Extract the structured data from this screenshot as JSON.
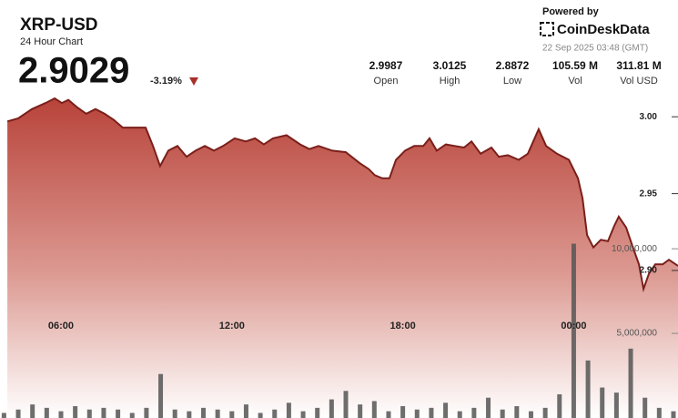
{
  "header": {
    "symbol": "XRP-USD",
    "subtitle": "24 Hour Chart",
    "price": "2.9029",
    "change": "-3.19%",
    "powered_by": "Powered by",
    "brand": "CoinDeskData",
    "timestamp": "22 Sep 2025 03:48 (GMT)",
    "stats": [
      {
        "value": "2.9987",
        "label": "Open"
      },
      {
        "value": "3.0125",
        "label": "High"
      },
      {
        "value": "2.8872",
        "label": "Low"
      },
      {
        "value": "105.59 M",
        "label": "Vol"
      },
      {
        "value": "311.81 M",
        "label": "Vol USD"
      }
    ]
  },
  "chart_data": [
    {
      "type": "area",
      "color": "#7a1f1a",
      "x": [
        4.12,
        4.5,
        4.98,
        5.46,
        5.78,
        6.03,
        6.26,
        6.58,
        6.89,
        7.21,
        7.53,
        7.85,
        8.17,
        8.65,
        8.97,
        9.23,
        9.48,
        9.77,
        10.09,
        10.41,
        10.73,
        11.05,
        11.37,
        11.69,
        12.1,
        12.49,
        12.81,
        13.12,
        13.44,
        13.92,
        14.4,
        14.72,
        15.04,
        15.52,
        16.0,
        16.48,
        16.8,
        17.02,
        17.28,
        17.53,
        17.76,
        18.08,
        18.4,
        18.72,
        18.94,
        19.19,
        19.51,
        19.83,
        20.15,
        20.41,
        20.73,
        21.11,
        21.37,
        21.69,
        22.07,
        22.39,
        22.77,
        23.03,
        23.41,
        23.83,
        24.15,
        24.31,
        24.47,
        24.69,
        24.95,
        25.2,
        25.42,
        25.58,
        25.84,
        26.06,
        26.29,
        26.45,
        26.64,
        26.86,
        27.12,
        27.34,
        27.66
      ],
      "values": [
        2.997,
        2.999,
        3.005,
        3.009,
        3.012,
        3.009,
        3.011,
        3.006,
        3.002,
        3.005,
        3.002,
        2.998,
        2.993,
        2.993,
        2.993,
        2.981,
        2.968,
        2.978,
        2.981,
        2.974,
        2.978,
        2.981,
        2.978,
        2.981,
        2.986,
        2.984,
        2.986,
        2.982,
        2.986,
        2.988,
        2.982,
        2.979,
        2.981,
        2.978,
        2.977,
        2.97,
        2.966,
        2.962,
        2.96,
        2.96,
        2.972,
        2.978,
        2.981,
        2.981,
        2.986,
        2.978,
        2.982,
        2.981,
        2.98,
        2.984,
        2.976,
        2.98,
        2.974,
        2.975,
        2.972,
        2.976,
        2.992,
        2.981,
        2.976,
        2.972,
        2.96,
        2.947,
        2.923,
        2.915,
        2.92,
        2.919,
        2.929,
        2.935,
        2.928,
        2.916,
        2.904,
        2.888,
        2.898,
        2.904,
        2.904,
        2.907,
        2.903
      ],
      "xlim": [
        3.86,
        27.66
      ],
      "ylim": [
        2.804,
        3.076
      ],
      "xticks": [
        {
          "value": 6,
          "label": "06:00"
        },
        {
          "value": 12,
          "label": "12:00"
        },
        {
          "value": 18,
          "label": "18:00"
        },
        {
          "value": 24,
          "label": "00:00"
        }
      ],
      "yticks": [
        {
          "value": 2.9,
          "label": "2.90"
        },
        {
          "value": 2.95,
          "label": "2.95"
        },
        {
          "value": 3.0,
          "label": "3.00"
        }
      ]
    },
    {
      "type": "bar",
      "color": "#555555",
      "x": [
        4.0,
        4.5,
        5.0,
        5.5,
        6.0,
        6.5,
        7.0,
        7.5,
        8.0,
        8.5,
        9.0,
        9.5,
        10.0,
        10.5,
        11.0,
        11.5,
        12.0,
        12.5,
        13.0,
        13.5,
        14.0,
        14.5,
        15.0,
        15.5,
        16.0,
        16.5,
        17.0,
        17.5,
        18.0,
        18.5,
        19.0,
        19.5,
        20.0,
        20.5,
        21.0,
        21.5,
        22.0,
        22.5,
        23.0,
        23.5,
        24.0,
        24.5,
        25.0,
        25.5,
        26.0,
        26.5,
        27.0,
        27.5
      ],
      "values": [
        300000,
        500000,
        800000,
        600000,
        400000,
        700000,
        500000,
        600000,
        500000,
        300000,
        600000,
        2600000,
        500000,
        400000,
        600000,
        500000,
        400000,
        800000,
        300000,
        500000,
        900000,
        400000,
        600000,
        1100000,
        1600000,
        800000,
        1000000,
        400000,
        700000,
        500000,
        600000,
        900000,
        400000,
        600000,
        1200000,
        500000,
        700000,
        400000,
        600000,
        1400000,
        10300000,
        3400000,
        1800000,
        1500000,
        4100000,
        1200000,
        600000,
        400000
      ],
      "xlim": [
        3.86,
        27.66
      ],
      "ylim": [
        0,
        24700000
      ],
      "yticks": [
        {
          "value": 5000000,
          "label": "5,000,000"
        },
        {
          "value": 10000000,
          "label": "10,000,000"
        }
      ]
    }
  ]
}
